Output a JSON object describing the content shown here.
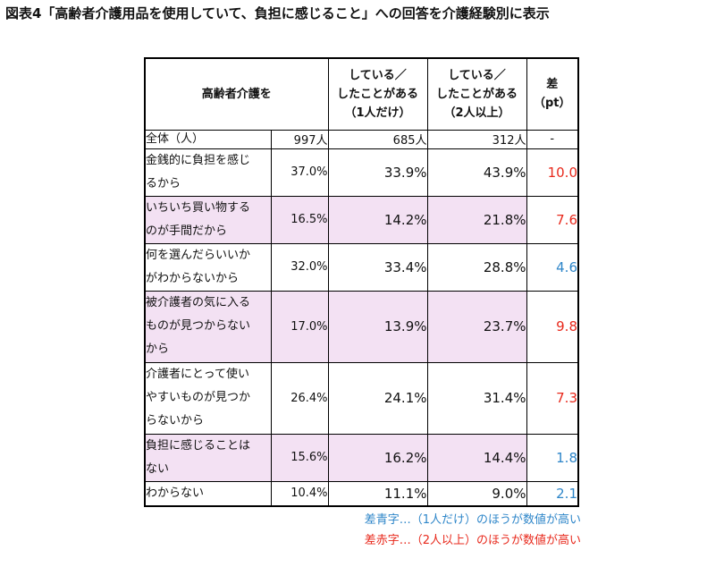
{
  "title": "図表4「高齢者介護用品を使用していて、負担に感じること」への回答を介護経験別に表示",
  "table": {
    "headers": {
      "label": "高齢者介護を",
      "col_a": [
        "している／",
        "したことがある",
        "（1人だけ）"
      ],
      "col_b": [
        "している／",
        "したことがある",
        "（2人以上）"
      ],
      "col_diff": [
        "差",
        "（pt）"
      ]
    },
    "total_row": {
      "label": "全体（人）",
      "all": "997人",
      "a": "685人",
      "b": "312人",
      "diff": "-"
    },
    "rows": [
      {
        "label": [
          "金銭的に負担を感じ",
          "るから"
        ],
        "all": "37.0%",
        "a": "33.9%",
        "b": "43.9%",
        "diff": "10.0",
        "diff_color": "red",
        "highlight": false
      },
      {
        "label": [
          "いちいち買い物する",
          "のが手間だから"
        ],
        "all": "16.5%",
        "a": "14.2%",
        "b": "21.8%",
        "diff": "7.6",
        "diff_color": "red",
        "highlight": true
      },
      {
        "label": [
          "何を選んだらいいか",
          "がわからないから"
        ],
        "all": "32.0%",
        "a": "33.4%",
        "b": "28.8%",
        "diff": "4.6",
        "diff_color": "blue",
        "highlight": false
      },
      {
        "label": [
          "被介護者の気に入る",
          "ものが見つからない",
          "から"
        ],
        "all": "17.0%",
        "a": "13.9%",
        "b": "23.7%",
        "diff": "9.8",
        "diff_color": "red",
        "highlight": true
      },
      {
        "label": [
          "介護者にとって使い",
          "やすいものが見つか",
          "らないから"
        ],
        "all": "26.4%",
        "a": "24.1%",
        "b": "31.4%",
        "diff": "7.3",
        "diff_color": "red",
        "highlight": false
      },
      {
        "label": [
          "負担に感じることは",
          "ない"
        ],
        "all": "15.6%",
        "a": "16.2%",
        "b": "14.4%",
        "diff": "1.8",
        "diff_color": "blue",
        "highlight": true
      },
      {
        "label": [
          "わからない"
        ],
        "all": "10.4%",
        "a": "11.1%",
        "b": "9.0%",
        "diff": "2.1",
        "diff_color": "blue",
        "highlight": false
      }
    ]
  },
  "notes": {
    "blue": "差青字…（1人だけ）のほうが数値が高い",
    "red": "差赤字…（2人以上）のほうが数値が高い"
  },
  "colors": {
    "highlight": "#f3e1f3",
    "red": "#e8291c",
    "blue": "#2e86c9"
  }
}
